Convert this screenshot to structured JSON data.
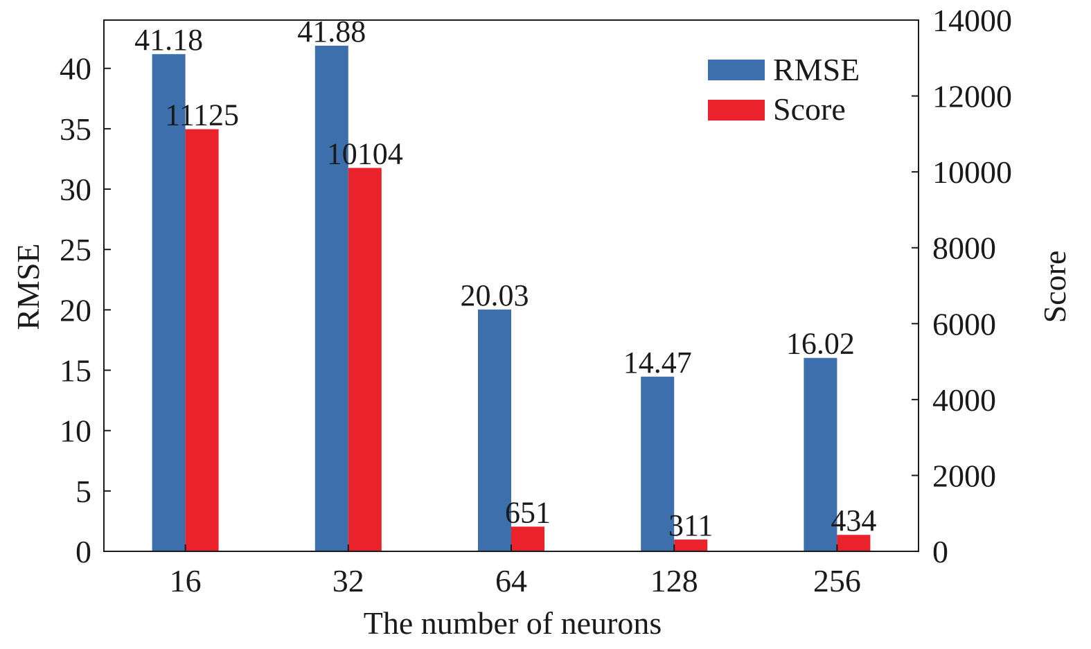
{
  "chart_data": {
    "type": "bar",
    "categories": [
      "16",
      "32",
      "64",
      "128",
      "256"
    ],
    "xlabel": "The number of neurons",
    "ylabel": "RMSE",
    "y2label": "Score",
    "ylim": [
      0,
      44
    ],
    "y2lim": [
      0,
      14000
    ],
    "yticks": [
      0,
      5,
      10,
      15,
      20,
      25,
      30,
      35,
      40
    ],
    "y2ticks": [
      0,
      2000,
      4000,
      6000,
      8000,
      10000,
      12000,
      14000
    ],
    "legend_position": "top-right",
    "grid": false,
    "series": [
      {
        "name": "RMSE",
        "axis": "left",
        "color": "#3e6fad",
        "values": [
          41.18,
          41.88,
          20.03,
          14.47,
          16.02
        ],
        "labels": [
          "41.18",
          "41.88",
          "20.03",
          "14.47",
          "16.02"
        ]
      },
      {
        "name": "Score",
        "axis": "right",
        "color": "#ea222c",
        "values": [
          11125,
          10104,
          651,
          311,
          434
        ],
        "labels": [
          "11125",
          "10104",
          "651",
          "311",
          "434"
        ]
      }
    ]
  }
}
